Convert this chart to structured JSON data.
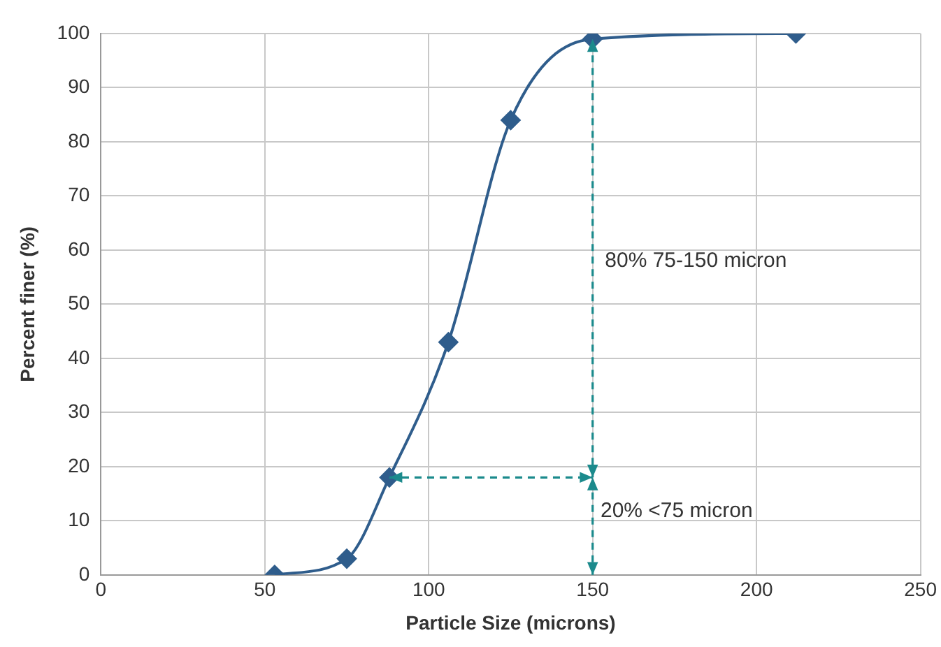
{
  "chart_data": {
    "type": "line",
    "xlabel": "Particle Size (microns)",
    "ylabel": "Percent finer (%)",
    "xlim": [
      0,
      250
    ],
    "xticks": [
      0,
      50,
      100,
      150,
      200,
      250
    ],
    "ylim": [
      0,
      100
    ],
    "yticks": [
      0,
      10,
      20,
      30,
      40,
      50,
      60,
      70,
      80,
      90,
      100
    ],
    "grid": true,
    "legend": false,
    "series": [
      {
        "color": "#2f5d8c",
        "marker": "diamond",
        "line_style": "solid",
        "x": [
          53,
          75,
          88,
          106,
          125,
          150,
          212
        ],
        "values": [
          0,
          3,
          18,
          43,
          84,
          99,
          100
        ]
      }
    ],
    "annotations": [
      "80% 75-150 micron",
      {
        "text": "20% <75 micron",
        "x": 88,
        "y": 18
      }
    ]
  }
}
